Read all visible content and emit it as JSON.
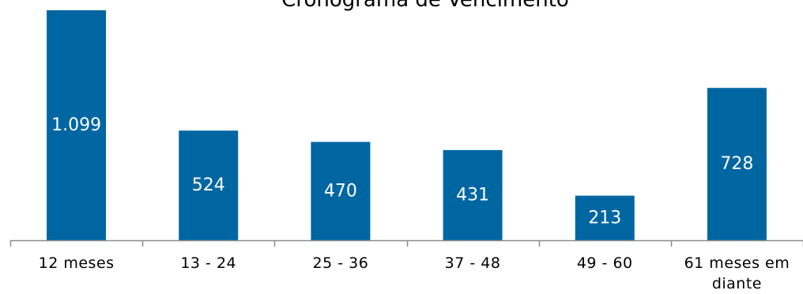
{
  "chart_data": {
    "type": "bar",
    "title": "Cronograma de  Vencimento",
    "categories": [
      [
        "12 meses"
      ],
      [
        "13 - 24"
      ],
      [
        "25 - 36"
      ],
      [
        "37 - 48"
      ],
      [
        "49 - 60"
      ],
      [
        "61 meses em",
        "diante"
      ]
    ],
    "values": [
      1099,
      524,
      470,
      431,
      213,
      728
    ],
    "value_labels": [
      "1.099",
      "524",
      "470",
      "431",
      "213",
      "728"
    ],
    "ylim": [
      0,
      1099
    ],
    "grid": false,
    "legend": "none",
    "colors": {
      "bar": "#0066a1",
      "axis": "#8c8c8c",
      "value_label": "#ffffff",
      "text": "#000000"
    }
  }
}
